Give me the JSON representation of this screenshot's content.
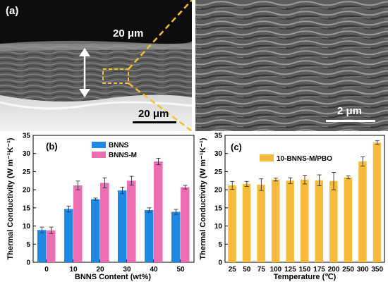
{
  "panel_a": {
    "label": "(a)",
    "scale_top": "20 μm",
    "scale_bottom": "20 μm",
    "scale_zoom": "2 μm"
  },
  "colors": {
    "bnns": "#1e88e5",
    "bnns_m": "#ee6eb4",
    "bnns_m_pbo": "#f7bb3c",
    "dashed_callout": "#f2c030"
  },
  "chart_data": [
    {
      "type": "bar",
      "panel_label": "(b)",
      "categories": [
        "0",
        "10",
        "20",
        "30",
        "40",
        "50"
      ],
      "xlabel": "BNNS Content (wt%)",
      "ylabel": "Thermal Conductivity (W m⁻¹K⁻¹)",
      "ylim": [
        0,
        35
      ],
      "yticks": [
        0,
        5,
        10,
        15,
        20,
        25,
        30,
        35
      ],
      "legend_position": "top-center",
      "series": [
        {
          "name": "BNNS",
          "color": "#1e88e5",
          "values": [
            8.9,
            14.7,
            17.4,
            19.8,
            14.4,
            13.9
          ],
          "errors": [
            0.8,
            0.8,
            0.3,
            0.9,
            0.6,
            0.7
          ]
        },
        {
          "name": "BNNS-M",
          "color": "#ee6eb4",
          "values": [
            8.8,
            21.2,
            21.9,
            22.5,
            27.8,
            20.7
          ],
          "errors": [
            0.9,
            1.2,
            1.4,
            1.2,
            0.9,
            0.5
          ]
        }
      ]
    },
    {
      "type": "bar",
      "panel_label": "(c)",
      "categories": [
        "25",
        "50",
        "75",
        "100",
        "125",
        "150",
        "175",
        "200",
        "250",
        "300",
        "350"
      ],
      "xlabel": "Temperature (℃)",
      "ylabel": "Thermal Conductivity (W m⁻¹K⁻¹)",
      "ylim": [
        0,
        35
      ],
      "yticks": [
        0,
        5,
        10,
        15,
        20,
        25,
        30,
        35
      ],
      "legend_position": "top-left",
      "series": [
        {
          "name": "10-BNNS-M/PBO",
          "color": "#f7bb3c",
          "values": [
            21.2,
            21.6,
            21.4,
            22.8,
            22.5,
            22.8,
            22.6,
            22.4,
            23.4,
            27.8,
            33.0
          ],
          "errors": [
            1.1,
            0.7,
            1.6,
            0.4,
            0.8,
            1.2,
            1.5,
            2.4,
            0.4,
            1.3,
            0.5
          ]
        }
      ]
    }
  ]
}
